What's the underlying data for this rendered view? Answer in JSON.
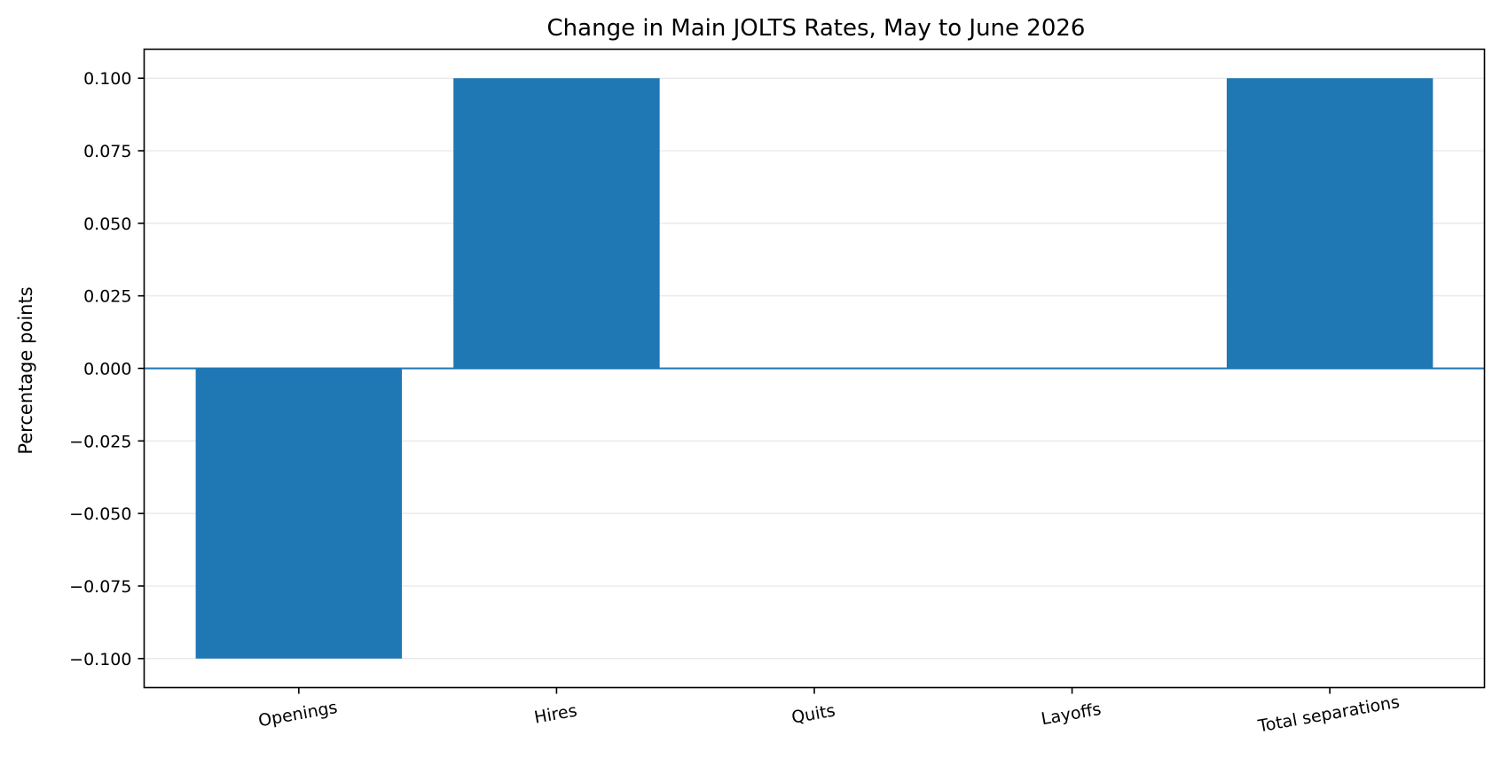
{
  "chart_data": {
    "type": "bar",
    "title": "Change in Main JOLTS Rates, May to June 2026",
    "xlabel": "",
    "ylabel": "Percentage points",
    "categories": [
      "Openings",
      "Hires",
      "Quits",
      "Layoffs",
      "Total separations"
    ],
    "values": [
      -0.1,
      0.1,
      0.0,
      0.0,
      0.1
    ],
    "ylim": [
      -0.11,
      0.11
    ],
    "yticks": [
      "0.100",
      "0.075",
      "0.050",
      "0.025",
      "0.000",
      "−0.025",
      "−0.050",
      "−0.075",
      "−0.100"
    ],
    "ytick_values": [
      0.1,
      0.075,
      0.05,
      0.025,
      0.0,
      -0.025,
      -0.05,
      -0.075,
      -0.1
    ],
    "grid": "y",
    "bar_color": "#1f77b4",
    "zero_line_color": "#1f77b4",
    "grid_color": "#e6e6e6"
  }
}
